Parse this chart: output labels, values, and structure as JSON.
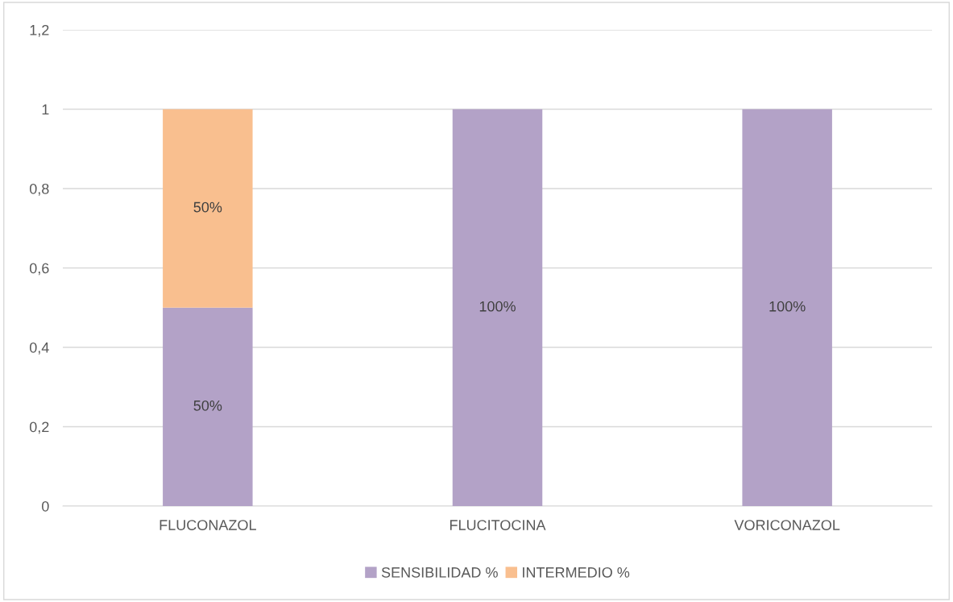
{
  "chart_data": {
    "type": "bar",
    "stacked": true,
    "categories": [
      "FLUCONAZOL",
      "FLUCITOCINA",
      "VORICONAZOL"
    ],
    "series": [
      {
        "name": "SENSIBILIDAD %",
        "color": "#b3a2c7",
        "values": [
          0.5,
          1,
          1
        ],
        "value_labels": [
          "50%",
          "100%",
          "100%"
        ]
      },
      {
        "name": "INTERMEDIO %",
        "color": "#f9bf8f",
        "values": [
          0.5,
          null,
          null
        ],
        "value_labels": [
          "50%",
          null,
          null
        ]
      }
    ],
    "ylim": [
      0,
      1.2
    ],
    "yticks": [
      {
        "value": 0,
        "label": "0"
      },
      {
        "value": 0.2,
        "label": "0,2"
      },
      {
        "value": 0.4,
        "label": "0,4"
      },
      {
        "value": 0.6,
        "label": "0,6"
      },
      {
        "value": 0.8,
        "label": "0,8"
      },
      {
        "value": 1,
        "label": "1"
      },
      {
        "value": 1.2,
        "label": "1,2"
      }
    ],
    "grid": "y",
    "legend": "bottom"
  }
}
